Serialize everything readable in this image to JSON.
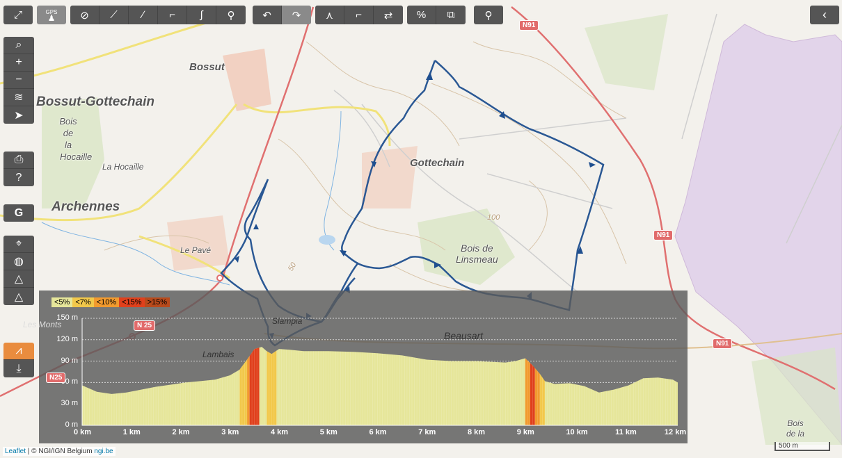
{
  "toolbar": {
    "groups": [
      {
        "items": [
          {
            "icon": "fullscreen-icon"
          }
        ]
      },
      {
        "items": [
          {
            "icon": "gps-icon",
            "label": "GPS"
          }
        ]
      },
      {
        "items": [
          {
            "icon": "hide-icon"
          },
          {
            "icon": "route-straight-icon"
          },
          {
            "icon": "route-line-icon"
          },
          {
            "icon": "route-path-icon"
          },
          {
            "icon": "route-curve-icon"
          },
          {
            "icon": "bike-icon"
          }
        ]
      },
      {
        "items": [
          {
            "icon": "undo-icon"
          },
          {
            "icon": "redo-icon"
          }
        ]
      },
      {
        "items": [
          {
            "icon": "waypoint-icon"
          },
          {
            "icon": "waypoint-split-icon"
          },
          {
            "icon": "reverse-icon"
          }
        ]
      },
      {
        "items": [
          {
            "icon": "percent-icon"
          },
          {
            "icon": "layers-copy-icon"
          }
        ]
      },
      {
        "items": [
          {
            "icon": "marker-icon"
          }
        ]
      }
    ],
    "collapse_icon": "chevron-left-icon"
  },
  "leftbar": {
    "group1": [
      "search-icon",
      "zoom-in-icon",
      "zoom-out-icon",
      "layers-icon",
      "locate-icon"
    ],
    "group2": [
      "print-icon",
      "help-icon"
    ],
    "group3": [
      "google-icon"
    ],
    "group4": [
      "crosshair-icon",
      "globe-icon",
      "bike-route-icon",
      "bike-route-alt-icon"
    ],
    "group5": [
      "elevation-chart-icon",
      "download-icon"
    ]
  },
  "places": {
    "bossut": "Bossut",
    "bossut_gottechain": "Bossut-Gottechain",
    "bois_de_la_hocaille": [
      "Bois",
      "de",
      "la",
      "Hocaille"
    ],
    "la_hocaille": "La Hocaille",
    "archennes": "Archennes",
    "le_pave": "Le Pavé",
    "gottechain": "Gottechain",
    "bois_de_linsmeau": [
      "Bois de",
      "Linsmeau"
    ],
    "les_monts": "Les Monts",
    "lambais": "Lambais",
    "slampia": "Slampia",
    "beausart": "Beausart",
    "bois_right": [
      "Bois",
      "de la"
    ],
    "contour_100": "100",
    "contour_50": "50"
  },
  "roads": {
    "n91_top": "N91",
    "n91_mid": "N91",
    "n91_bottom": "N91",
    "n25_a": "N 25",
    "n25_b": "N25"
  },
  "elevation": {
    "legend": [
      {
        "label": "<5%",
        "color": "#e6e69a"
      },
      {
        "label": "<7%",
        "color": "#f2c84a"
      },
      {
        "label": "<10%",
        "color": "#f29a2e"
      },
      {
        "label": "<15%",
        "color": "#e0401c"
      },
      {
        "label": ">15%",
        "color": "#8a2a10"
      }
    ],
    "y_labels": [
      "150 m",
      "120 m",
      "90 m",
      "60 m",
      "30 m",
      "0 m"
    ],
    "x_labels": [
      "0 km",
      "1 km",
      "2 km",
      "3 km",
      "4 km",
      "5 km",
      "6 km",
      "7 km",
      "8 km",
      "9 km",
      "10 km",
      "11 km",
      "12 km"
    ]
  },
  "chart_data": {
    "type": "area",
    "title": "",
    "xlabel": "",
    "ylabel": "",
    "xlim": [
      0,
      12.1
    ],
    "ylim": [
      0,
      150
    ],
    "x": [
      0,
      0.3,
      0.6,
      0.9,
      1.2,
      1.5,
      1.8,
      2.1,
      2.4,
      2.7,
      3.0,
      3.2,
      3.35,
      3.5,
      3.65,
      3.75,
      3.85,
      4.0,
      4.2,
      4.5,
      5.0,
      5.5,
      6.0,
      6.5,
      7.0,
      7.5,
      8.0,
      8.3,
      8.6,
      8.8,
      9.0,
      9.15,
      9.3,
      9.4,
      9.6,
      9.9,
      10.2,
      10.5,
      10.8,
      11.1,
      11.4,
      11.7,
      12.0,
      12.1
    ],
    "y": [
      56,
      47,
      44,
      46,
      50,
      54,
      57,
      60,
      62,
      64,
      70,
      78,
      92,
      107,
      110,
      104,
      100,
      107,
      106,
      104,
      104,
      103,
      101,
      98,
      92,
      90,
      90,
      89,
      88,
      90,
      94,
      84,
      72,
      62,
      58,
      59,
      55,
      46,
      50,
      56,
      66,
      67,
      64,
      60
    ],
    "grade_segments": [
      {
        "from": 3.2,
        "to": 3.35,
        "class": "<7%"
      },
      {
        "from": 3.35,
        "to": 3.4,
        "class": "<10%"
      },
      {
        "from": 3.4,
        "to": 3.6,
        "class": "<15%"
      },
      {
        "from": 3.75,
        "to": 3.95,
        "class": "<7%"
      },
      {
        "from": 9.0,
        "to": 9.1,
        "class": "<10%"
      },
      {
        "from": 9.1,
        "to": 9.2,
        "class": "<15%"
      },
      {
        "from": 9.2,
        "to": 9.3,
        "class": "<10%"
      },
      {
        "from": 9.3,
        "to": 9.4,
        "class": "<7%"
      }
    ],
    "grid": true
  },
  "attribution": {
    "leaflet": "Leaflet",
    "text": " | © NGI/IGN Belgium ",
    "link": "ngi.be"
  },
  "scale": "500 m"
}
